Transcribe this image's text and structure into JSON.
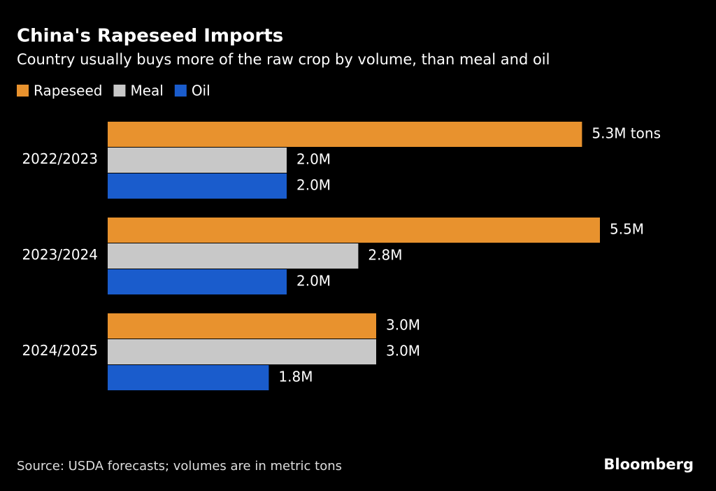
{
  "chart_data": {
    "type": "bar",
    "orientation": "horizontal",
    "title": "China's Rapeseed Imports",
    "subtitle": "Country usually buys more of the raw crop by volume, than meal and oil",
    "categories": [
      "2022/2023",
      "2023/2024",
      "2024/2025"
    ],
    "series": [
      {
        "name": "Rapeseed",
        "color": "#e8922e",
        "values": [
          5.3,
          5.5,
          3.0
        ],
        "value_labels": [
          "5.3M tons",
          "5.5M",
          "3.0M"
        ]
      },
      {
        "name": "Meal",
        "color": "#c8c8c8",
        "values": [
          2.0,
          2.8,
          3.0
        ],
        "value_labels": [
          "2.0M",
          "2.8M",
          "3.0M"
        ]
      },
      {
        "name": "Oil",
        "color": "#1a5ccc",
        "values": [
          2.0,
          2.0,
          1.8
        ],
        "value_labels": [
          "2.0M",
          "2.0M",
          "1.8M"
        ]
      }
    ],
    "legend": "top-left",
    "source": "Source: USDA forecasts; volumes are in metric tons",
    "logo": "Bloomberg"
  }
}
